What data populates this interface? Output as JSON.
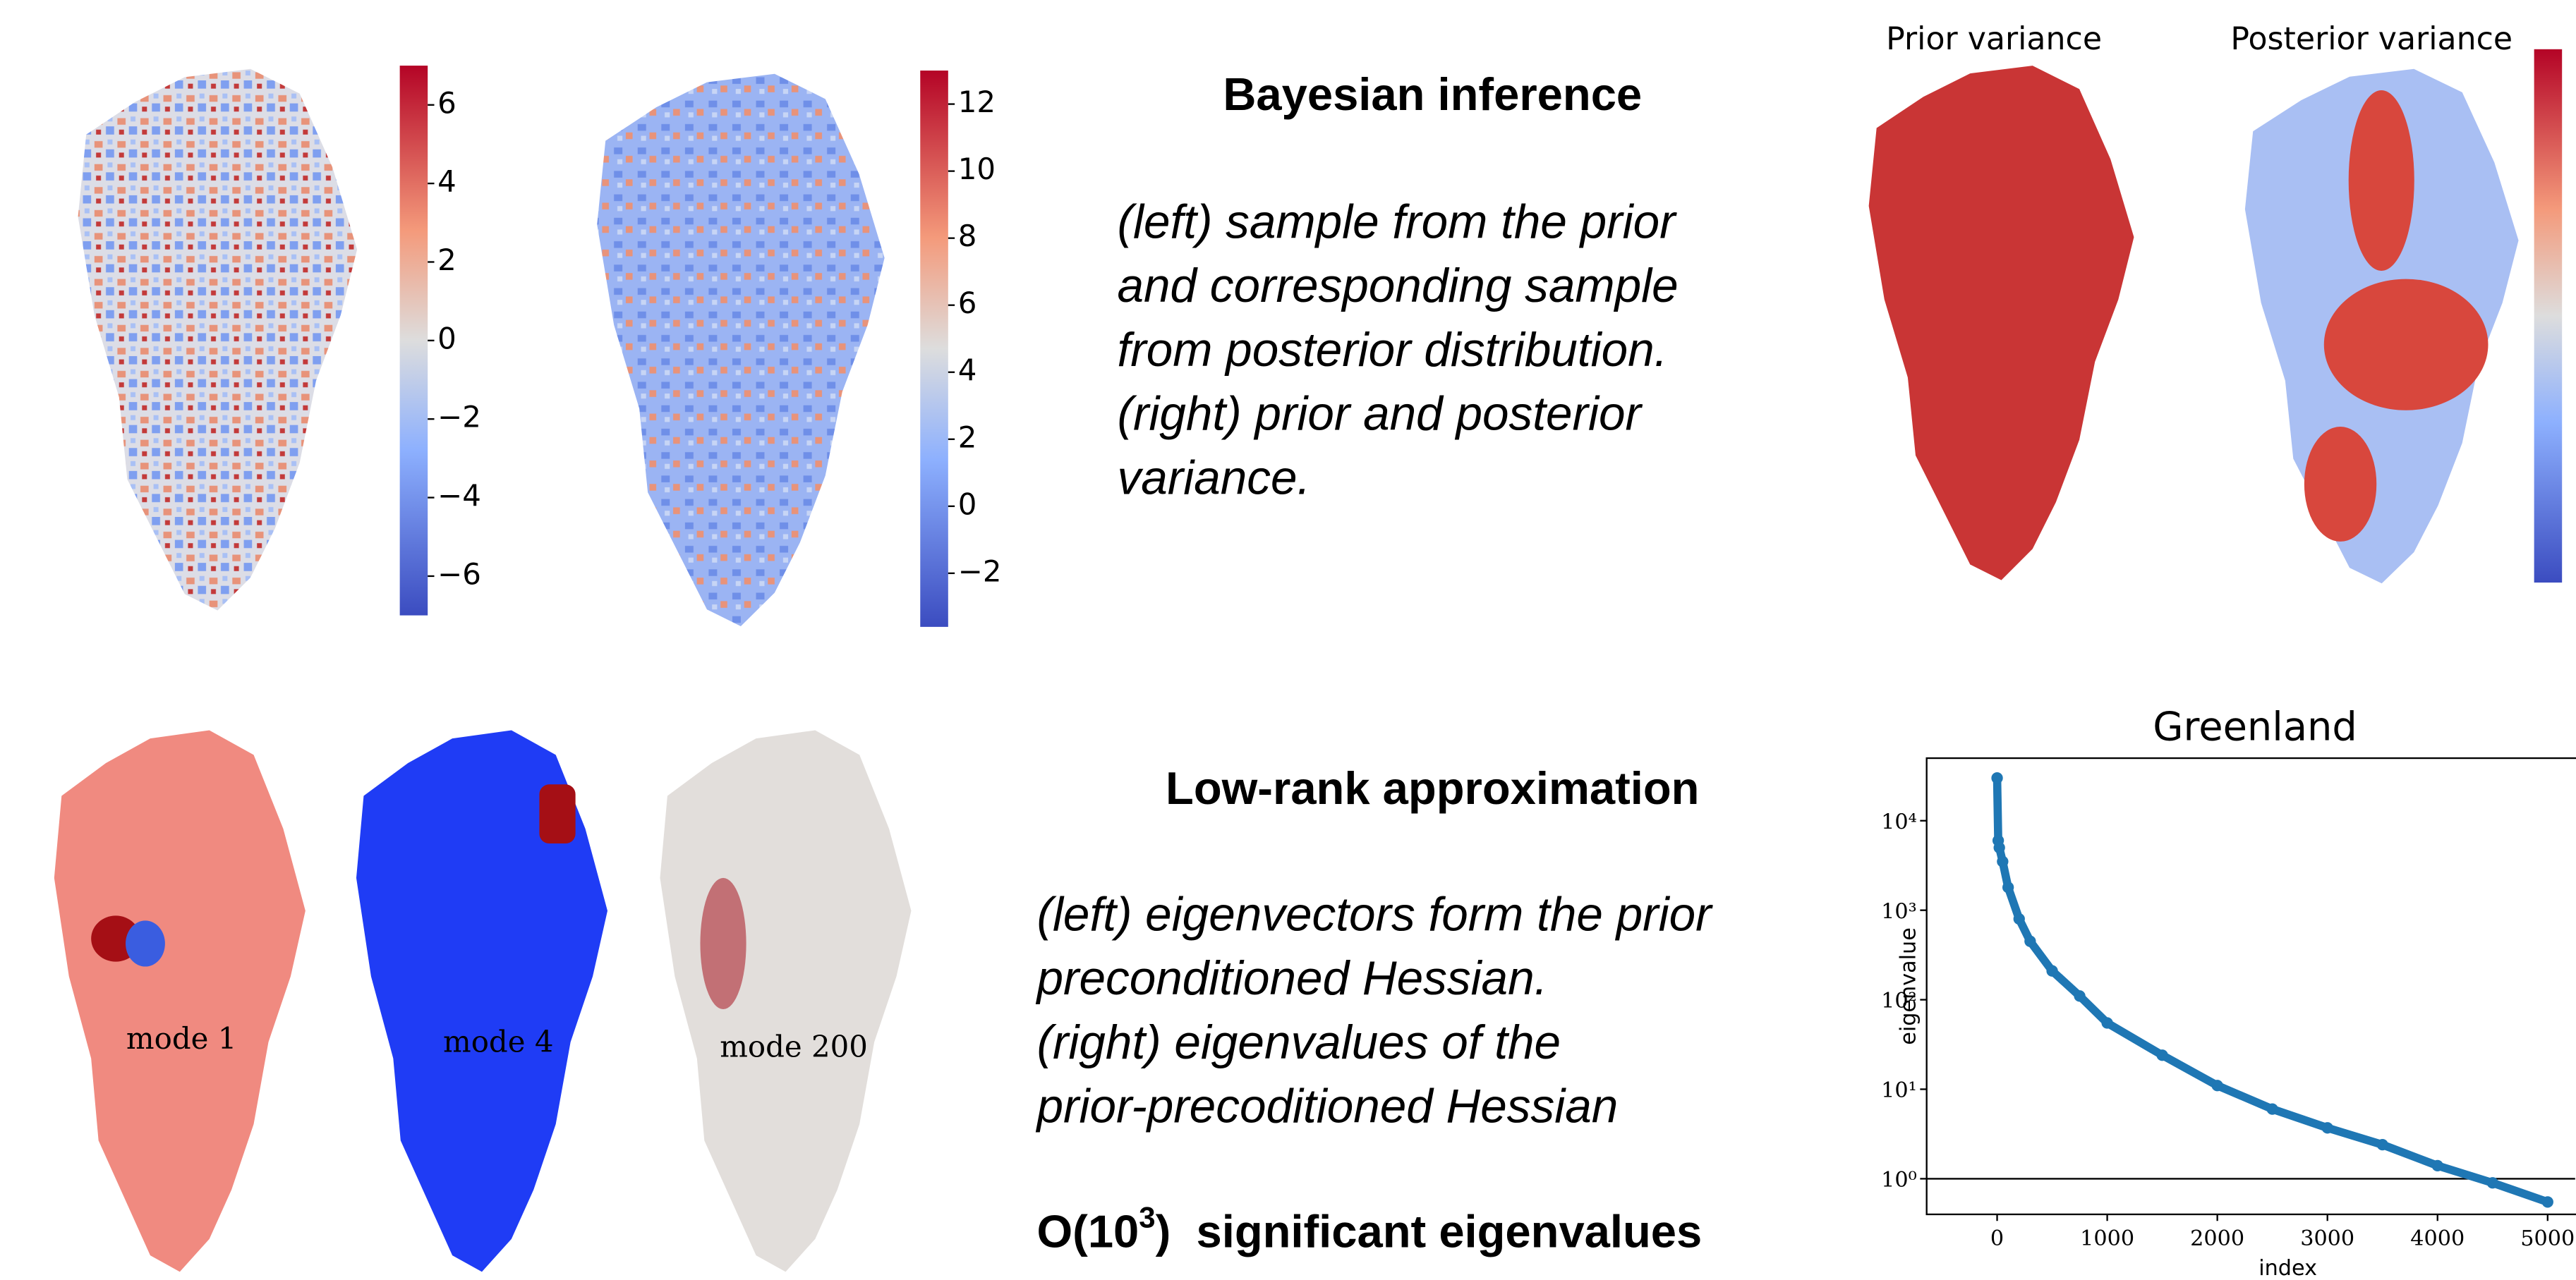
{
  "sample_colorbars": [
    {
      "lim": [
        -7,
        7
      ],
      "ticks": [
        {
          "value": 6,
          "label": "6"
        },
        {
          "value": 4,
          "label": "4"
        },
        {
          "value": 2,
          "label": "2"
        },
        {
          "value": 0,
          "label": "0"
        },
        {
          "value": -2,
          "label": "−2"
        },
        {
          "value": -4,
          "label": "−4"
        },
        {
          "value": -6,
          "label": "−6"
        }
      ]
    },
    {
      "lim": [
        -3.6,
        13
      ],
      "ticks": [
        {
          "value": 12,
          "label": "12"
        },
        {
          "value": 10,
          "label": "10"
        },
        {
          "value": 8,
          "label": "8"
        },
        {
          "value": 6,
          "label": "6"
        },
        {
          "value": 4,
          "label": "4"
        },
        {
          "value": 2,
          "label": "2"
        },
        {
          "value": 0,
          "label": "0"
        },
        {
          "value": -2,
          "label": "−2"
        }
      ]
    }
  ],
  "variance_titles": [
    "Prior variance",
    "Posterior variance"
  ],
  "bayesian": {
    "heading": "Bayesian inference",
    "lines": [
      "(left) sample from the prior",
      "and corresponding sample",
      "from posterior distribution.",
      "(right) prior and posterior",
      "variance."
    ]
  },
  "modes": [
    "mode 1",
    "mode 4",
    "mode 200"
  ],
  "lowrank": {
    "heading": "Low-rank approximation",
    "lines": [
      "(left) eigenvectors form the prior",
      "preconditioned Hessian.",
      "(right) eigenvalues of the",
      "prior-precoditioned Hessian"
    ],
    "footer": {
      "pre": "O(10",
      "sup": "3",
      "post": ")  significant eigenvalues"
    }
  },
  "chart_data": {
    "type": "scatter",
    "title": "Greenland",
    "xlabel": "index",
    "ylabel": "eigenvalue",
    "log_y": true,
    "color": "#1f77b4",
    "x": [
      0,
      10,
      20,
      50,
      100,
      200,
      300,
      500,
      750,
      1000,
      1500,
      2000,
      2500,
      3000,
      3500,
      4000,
      4500,
      5000
    ],
    "y": [
      30000,
      6000,
      5000,
      3500,
      1800,
      800,
      450,
      210,
      110,
      55,
      24,
      11,
      6,
      3.7,
      2.4,
      1.4,
      0.9,
      0.55
    ],
    "reference_line": 1,
    "xlim": [
      -640,
      5250
    ],
    "ylim": [
      0.4,
      50000
    ],
    "xticks": [
      0,
      1000,
      2000,
      3000,
      4000,
      5000
    ],
    "yticks": [
      {
        "value": 1,
        "label": "10⁰"
      },
      {
        "value": 10,
        "label": "10¹"
      },
      {
        "value": 100,
        "label": "10²"
      },
      {
        "value": 1000,
        "label": "10³"
      },
      {
        "value": 10000,
        "label": "10⁴"
      }
    ]
  }
}
